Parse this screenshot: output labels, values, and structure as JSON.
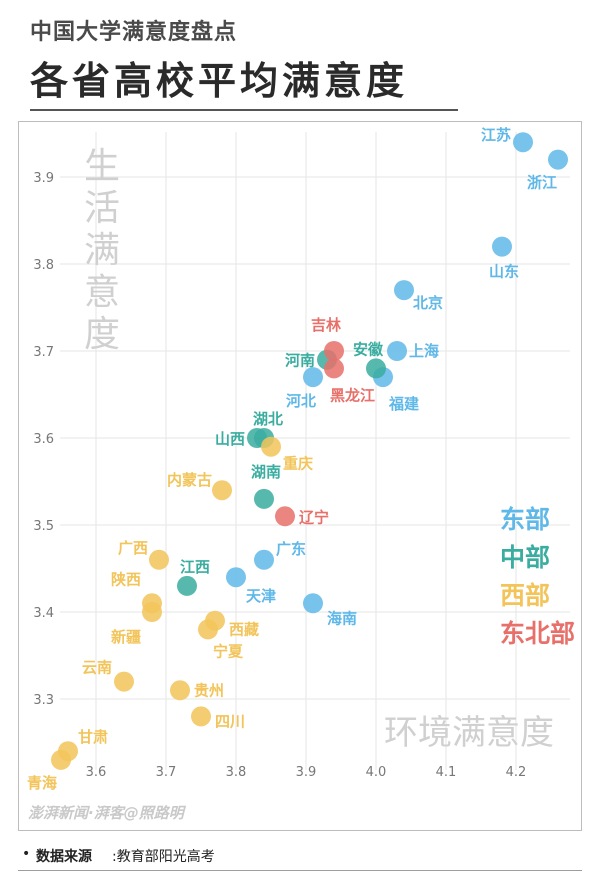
{
  "header": {
    "subtitle": "中国大学满意度盘点",
    "title": "各省高校平均满意度"
  },
  "watermark": "澎湃新闻·湃客@照路明",
  "source": {
    "label": "数据来源",
    "value": ":教育部阳光高考"
  },
  "chart_data": {
    "type": "scatter",
    "xlabel": "环境满意度",
    "ylabel": "生活满意度",
    "xlim": [
      3.55,
      4.27
    ],
    "ylim": [
      3.25,
      3.96
    ],
    "x_ticks": [
      "3.6",
      "3.7",
      "3.8",
      "3.9",
      "4.0",
      "4.1",
      "4.2"
    ],
    "y_ticks": [
      "3.3",
      "3.4",
      "3.5",
      "3.6",
      "3.7",
      "3.8",
      "3.9"
    ],
    "grid": true,
    "legend": "right",
    "series": [
      {
        "name": "东部",
        "color": "#5fb8e8",
        "points": [
          {
            "label": "江苏",
            "x": 4.21,
            "y": 3.94
          },
          {
            "label": "浙江",
            "x": 4.26,
            "y": 3.92
          },
          {
            "label": "山东",
            "x": 4.18,
            "y": 3.82
          },
          {
            "label": "北京",
            "x": 4.04,
            "y": 3.77
          },
          {
            "label": "上海",
            "x": 4.03,
            "y": 3.7
          },
          {
            "label": "福建",
            "x": 4.01,
            "y": 3.67
          },
          {
            "label": "河北",
            "x": 3.91,
            "y": 3.67
          },
          {
            "label": "广东",
            "x": 3.84,
            "y": 3.46
          },
          {
            "label": "天津",
            "x": 3.8,
            "y": 3.44
          },
          {
            "label": "海南",
            "x": 3.91,
            "y": 3.41
          }
        ]
      },
      {
        "name": "中部",
        "color": "#3aada0",
        "points": [
          {
            "label": "河南",
            "x": 3.93,
            "y": 3.69
          },
          {
            "label": "安徽",
            "x": 4.0,
            "y": 3.68
          },
          {
            "label": "湖北",
            "x": 3.84,
            "y": 3.6
          },
          {
            "label": "山西",
            "x": 3.83,
            "y": 3.6
          },
          {
            "label": "湖南",
            "x": 3.84,
            "y": 3.53
          },
          {
            "label": "江西",
            "x": 3.73,
            "y": 3.43
          }
        ]
      },
      {
        "name": "西部",
        "color": "#f2c45a",
        "points": [
          {
            "label": "重庆",
            "x": 3.85,
            "y": 3.59
          },
          {
            "label": "内蒙古",
            "x": 3.78,
            "y": 3.54
          },
          {
            "label": "广西",
            "x": 3.69,
            "y": 3.46
          },
          {
            "label": "陕西",
            "x": 3.68,
            "y": 3.41
          },
          {
            "label": "新疆",
            "x": 3.68,
            "y": 3.4
          },
          {
            "label": "西藏",
            "x": 3.77,
            "y": 3.39
          },
          {
            "label": "宁夏",
            "x": 3.76,
            "y": 3.38
          },
          {
            "label": "云南",
            "x": 3.64,
            "y": 3.32
          },
          {
            "label": "贵州",
            "x": 3.72,
            "y": 3.31
          },
          {
            "label": "四川",
            "x": 3.75,
            "y": 3.28
          },
          {
            "label": "甘肃",
            "x": 3.56,
            "y": 3.24
          },
          {
            "label": "青海",
            "x": 3.55,
            "y": 3.23
          }
        ]
      },
      {
        "name": "东北部",
        "color": "#e8706a",
        "points": [
          {
            "label": "吉林",
            "x": 3.94,
            "y": 3.7
          },
          {
            "label": "黑龙江",
            "x": 3.94,
            "y": 3.68
          },
          {
            "label": "辽宁",
            "x": 3.87,
            "y": 3.51
          }
        ]
      }
    ]
  }
}
